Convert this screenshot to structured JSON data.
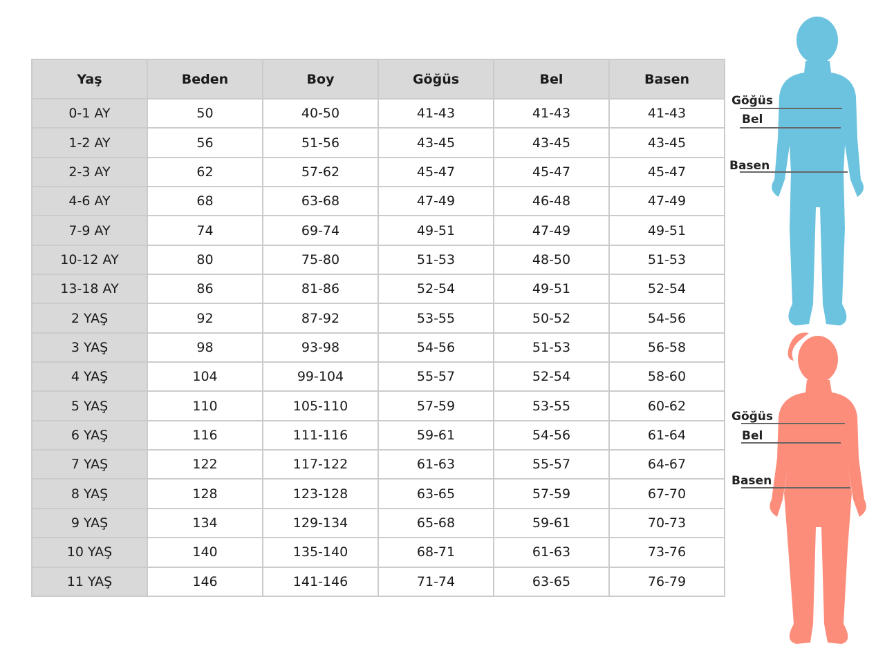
{
  "table": {
    "header": [
      "Yaş",
      "Beden",
      "Boy",
      "Göğüs",
      "Bel",
      "Basen"
    ],
    "rows": [
      [
        "0-1 AY",
        "50",
        "40-50",
        "41-43",
        "41-43",
        "41-43"
      ],
      [
        "1-2 AY",
        "56",
        "51-56",
        "43-45",
        "43-45",
        "43-45"
      ],
      [
        "2-3 AY",
        "62",
        "57-62",
        "45-47",
        "45-47",
        "45-47"
      ],
      [
        "4-6 AY",
        "68",
        "63-68",
        "47-49",
        "46-48",
        "47-49"
      ],
      [
        "7-9 AY",
        "74",
        "69-74",
        "49-51",
        "47-49",
        "49-51"
      ],
      [
        "10-12 AY",
        "80",
        "75-80",
        "51-53",
        "48-50",
        "51-53"
      ],
      [
        "13-18 AY",
        "86",
        "81-86",
        "52-54",
        "49-51",
        "52-54"
      ],
      [
        "2 YAŞ",
        "92",
        "87-92",
        "53-55",
        "50-52",
        "54-56"
      ],
      [
        "3 YAŞ",
        "98",
        "93-98",
        "54-56",
        "51-53",
        "56-58"
      ],
      [
        "4 YAŞ",
        "104",
        "99-104",
        "55-57",
        "52-54",
        "58-60"
      ],
      [
        "5 YAŞ",
        "110",
        "105-110",
        "57-59",
        "53-55",
        "60-62"
      ],
      [
        "6 YAŞ",
        "116",
        "111-116",
        "59-61",
        "54-56",
        "61-64"
      ],
      [
        "7 YAŞ",
        "122",
        "117-122",
        "61-63",
        "55-57",
        "64-67"
      ],
      [
        "8 YAŞ",
        "128",
        "123-128",
        "63-65",
        "57-59",
        "67-70"
      ],
      [
        "9 YAŞ",
        "134",
        "129-134",
        "65-68",
        "59-61",
        "70-73"
      ],
      [
        "10 YAŞ",
        "140",
        "135-140",
        "68-71",
        "61-63",
        "73-76"
      ],
      [
        "11 YAŞ",
        "146",
        "141-146",
        "71-74",
        "63-65",
        "76-79"
      ]
    ]
  },
  "figures": [
    {
      "labels": [
        "Göğüs",
        "Bel",
        "Basen"
      ]
    },
    {
      "labels": [
        "Göğüs",
        "Bel",
        "Basen"
      ]
    }
  ]
}
